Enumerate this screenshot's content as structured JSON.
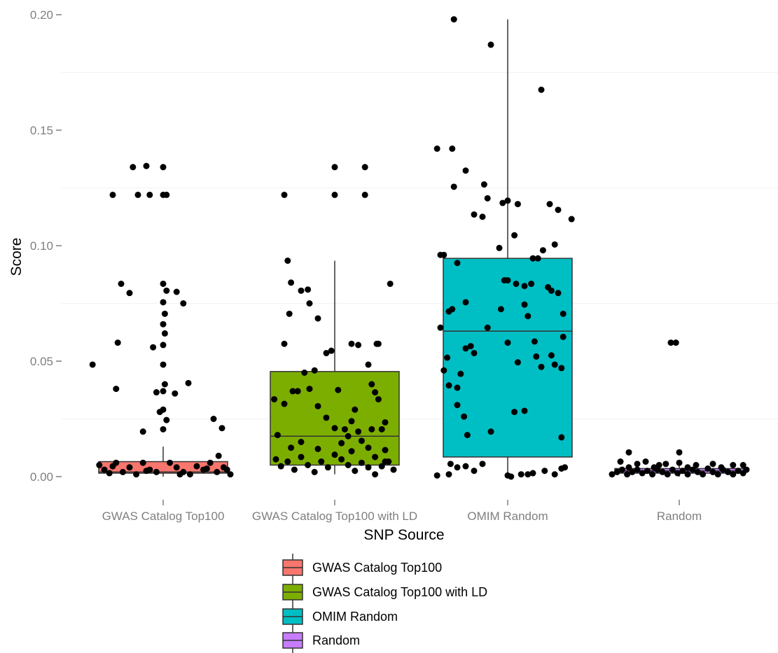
{
  "chart_data": {
    "type": "box",
    "xlabel": "SNP Source",
    "ylabel": "Score",
    "ylim": [
      -0.007,
      0.202
    ],
    "yticks": [
      0.0,
      0.05,
      0.1,
      0.15,
      0.2
    ],
    "ytick_labels": [
      "0.00",
      "0.05",
      "0.10",
      "0.15",
      "0.20"
    ],
    "grid": true,
    "legend_position": "bottom",
    "categories": [
      "GWAS Catalog Top100",
      "GWAS Catalog Top100 with LD",
      "OMIM Random",
      "Random"
    ],
    "series": [
      {
        "name": "GWAS Catalog Top100",
        "color": "#f8766d",
        "box": {
          "q1": 0.0015,
          "median": 0.002,
          "q3": 0.0065,
          "whisker_low": 0.0,
          "whisker_high": 0.013
        },
        "points": [
          [
            -0.42,
            0.0485
          ],
          [
            -0.3,
            0.122
          ],
          [
            -0.28,
            0.038
          ],
          [
            -0.27,
            0.058
          ],
          [
            -0.25,
            0.0835
          ],
          [
            -0.2,
            0.0795
          ],
          [
            -0.18,
            0.134
          ],
          [
            -0.15,
            0.122
          ],
          [
            -0.12,
            0.0195
          ],
          [
            -0.1,
            0.1345
          ],
          [
            -0.08,
            0.122
          ],
          [
            -0.06,
            0.056
          ],
          [
            -0.04,
            0.0365
          ],
          [
            -0.02,
            0.028
          ],
          [
            0.0,
            0.134
          ],
          [
            0.0,
            0.122
          ],
          [
            0.02,
            0.122
          ],
          [
            0.0,
            0.0835
          ],
          [
            0.02,
            0.0805
          ],
          [
            0.0,
            0.0755
          ],
          [
            0.01,
            0.0705
          ],
          [
            0.0,
            0.066
          ],
          [
            0.01,
            0.062
          ],
          [
            0.0,
            0.057
          ],
          [
            0.0,
            0.0485
          ],
          [
            0.01,
            0.04
          ],
          [
            0.0,
            0.037
          ],
          [
            0.0,
            0.029
          ],
          [
            0.02,
            0.0245
          ],
          [
            0.0,
            0.0205
          ],
          [
            0.08,
            0.08
          ],
          [
            0.12,
            0.075
          ],
          [
            0.15,
            0.0405
          ],
          [
            0.07,
            0.036
          ],
          [
            0.3,
            0.025
          ],
          [
            0.35,
            0.021
          ],
          [
            0.33,
            0.009
          ],
          [
            -0.38,
            0.005
          ],
          [
            -0.35,
            0.003
          ],
          [
            -0.32,
            0.0015
          ],
          [
            -0.28,
            0.006
          ],
          [
            -0.24,
            0.002
          ],
          [
            -0.2,
            0.004
          ],
          [
            -0.16,
            0.001
          ],
          [
            -0.12,
            0.006
          ],
          [
            -0.08,
            0.003
          ],
          [
            -0.04,
            0.002
          ],
          [
            0.04,
            0.006
          ],
          [
            0.08,
            0.004
          ],
          [
            0.12,
            0.002
          ],
          [
            0.16,
            0.001
          ],
          [
            0.2,
            0.0045
          ],
          [
            0.24,
            0.003
          ],
          [
            0.28,
            0.006
          ],
          [
            0.32,
            0.002
          ],
          [
            0.36,
            0.004
          ],
          [
            0.4,
            0.001
          ],
          [
            -0.3,
            0.0045
          ],
          [
            0.1,
            0.001
          ],
          [
            0.26,
            0.0035
          ],
          [
            0.38,
            0.003
          ],
          [
            -0.1,
            0.0025
          ]
        ]
      },
      {
        "name": "GWAS Catalog Top100 with LD",
        "color": "#7cae00",
        "box": {
          "q1": 0.005,
          "median": 0.0175,
          "q3": 0.0455,
          "whisker_low": 0.001,
          "whisker_high": 0.0935
        },
        "points": [
          [
            -0.3,
            0.122
          ],
          [
            -0.28,
            0.0935
          ],
          [
            -0.26,
            0.084
          ],
          [
            -0.2,
            0.0805
          ],
          [
            -0.16,
            0.081
          ],
          [
            -0.15,
            0.075
          ],
          [
            -0.1,
            0.0685
          ],
          [
            -0.27,
            0.0705
          ],
          [
            -0.3,
            0.0575
          ],
          [
            -0.18,
            0.045
          ],
          [
            -0.12,
            0.046
          ],
          [
            -0.05,
            0.0535
          ],
          [
            -0.02,
            0.0545
          ],
          [
            0.0,
            0.134
          ],
          [
            0.0,
            0.122
          ],
          [
            0.18,
            0.134
          ],
          [
            0.18,
            0.122
          ],
          [
            0.1,
            0.0575
          ],
          [
            0.14,
            0.057
          ],
          [
            0.25,
            0.0575
          ],
          [
            0.26,
            0.0575
          ],
          [
            0.2,
            0.0485
          ],
          [
            0.22,
            0.04
          ],
          [
            0.24,
            0.0365
          ],
          [
            0.26,
            0.0335
          ],
          [
            0.33,
            0.0835
          ],
          [
            0.3,
            0.0235
          ],
          [
            0.28,
            0.0205
          ],
          [
            -0.36,
            0.0335
          ],
          [
            -0.3,
            0.0315
          ],
          [
            -0.25,
            0.037
          ],
          [
            -0.22,
            0.037
          ],
          [
            -0.15,
            0.038
          ],
          [
            -0.1,
            0.0305
          ],
          [
            -0.05,
            0.0255
          ],
          [
            0.0,
            0.021
          ],
          [
            0.02,
            0.0375
          ],
          [
            0.06,
            0.0205
          ],
          [
            0.08,
            0.0175
          ],
          [
            0.1,
            0.024
          ],
          [
            0.12,
            0.029
          ],
          [
            0.14,
            0.0195
          ],
          [
            0.16,
            0.0155
          ],
          [
            0.2,
            0.0125
          ],
          [
            0.24,
            0.0085
          ],
          [
            0.28,
            0.0045
          ],
          [
            0.32,
            0.0065
          ],
          [
            0.35,
            0.003
          ],
          [
            -0.35,
            0.0075
          ],
          [
            -0.32,
            0.0045
          ],
          [
            -0.28,
            0.0065
          ],
          [
            -0.24,
            0.003
          ],
          [
            -0.2,
            0.0085
          ],
          [
            -0.16,
            0.005
          ],
          [
            -0.12,
            0.002
          ],
          [
            -0.08,
            0.0065
          ],
          [
            -0.04,
            0.004
          ],
          [
            0.04,
            0.0075
          ],
          [
            0.08,
            0.005
          ],
          [
            0.12,
            0.0025
          ],
          [
            0.16,
            0.006
          ],
          [
            0.2,
            0.004
          ],
          [
            0.24,
            0.001
          ],
          [
            0.3,
            0.0065
          ],
          [
            -0.34,
            0.018
          ],
          [
            -0.26,
            0.0125
          ],
          [
            -0.2,
            0.015
          ],
          [
            -0.1,
            0.012
          ],
          [
            0.0,
            0.0095
          ],
          [
            0.04,
            0.0145
          ],
          [
            0.1,
            0.011
          ],
          [
            0.22,
            0.0205
          ],
          [
            0.3,
            0.0115
          ]
        ]
      },
      {
        "name": "OMIM Random",
        "color": "#00bfc4",
        "box": {
          "q1": 0.0085,
          "median": 0.063,
          "q3": 0.0945,
          "whisker_low": 0.0,
          "whisker_high": 0.198
        },
        "points": [
          [
            -0.42,
            0.142
          ],
          [
            -0.33,
            0.142
          ],
          [
            -0.32,
            0.1255
          ],
          [
            -0.25,
            0.1325
          ],
          [
            -0.2,
            0.1135
          ],
          [
            -0.15,
            0.1125
          ],
          [
            -0.14,
            0.1265
          ],
          [
            -0.12,
            0.1205
          ],
          [
            -0.03,
            0.1185
          ],
          [
            0.06,
            0.118
          ],
          [
            0.25,
            0.118
          ],
          [
            0.3,
            0.1155
          ],
          [
            0.38,
            0.1115
          ],
          [
            0.28,
            0.1005
          ],
          [
            -0.32,
            0.198
          ],
          [
            -0.1,
            0.187
          ],
          [
            0.2,
            0.1675
          ],
          [
            0.0,
            0.1195
          ],
          [
            -0.05,
            0.099
          ],
          [
            0.04,
            0.1045
          ],
          [
            -0.38,
            0.096
          ],
          [
            -0.3,
            0.0925
          ],
          [
            -0.4,
            0.096
          ],
          [
            -0.25,
            0.0755
          ],
          [
            -0.12,
            0.0645
          ],
          [
            -0.04,
            0.0725
          ],
          [
            -0.02,
            0.085
          ],
          [
            0.0,
            0.085
          ],
          [
            0.05,
            0.0835
          ],
          [
            0.1,
            0.0825
          ],
          [
            0.15,
            0.0945
          ],
          [
            0.18,
            0.0945
          ],
          [
            0.21,
            0.098
          ],
          [
            0.24,
            0.082
          ],
          [
            0.26,
            0.0805
          ],
          [
            0.3,
            0.0795
          ],
          [
            0.33,
            0.0705
          ],
          [
            0.33,
            0.0605
          ],
          [
            0.32,
            0.047
          ],
          [
            0.32,
            0.017
          ],
          [
            0.1,
            0.0745
          ],
          [
            0.12,
            0.0695
          ],
          [
            0.14,
            0.0835
          ],
          [
            0.16,
            0.0585
          ],
          [
            0.17,
            0.052
          ],
          [
            0.06,
            0.0495
          ],
          [
            -0.35,
            0.0715
          ],
          [
            -0.33,
            0.0725
          ],
          [
            -0.36,
            0.0515
          ],
          [
            -0.38,
            0.046
          ],
          [
            -0.35,
            0.0395
          ],
          [
            -0.3,
            0.0385
          ],
          [
            -0.3,
            0.031
          ],
          [
            -0.25,
            0.0555
          ],
          [
            -0.4,
            0.0645
          ],
          [
            -0.22,
            0.0565
          ],
          [
            -0.2,
            0.0535
          ],
          [
            0.0,
            0.058
          ],
          [
            0.04,
            0.028
          ],
          [
            0.1,
            0.0285
          ],
          [
            -0.1,
            0.0195
          ],
          [
            -0.26,
            0.026
          ],
          [
            -0.24,
            0.018
          ],
          [
            -0.28,
            0.0445
          ],
          [
            0.28,
            0.0485
          ],
          [
            0.2,
            0.0475
          ],
          [
            0.26,
            0.0525
          ],
          [
            -0.42,
            0.0005
          ],
          [
            -0.35,
            0.001
          ],
          [
            -0.3,
            0.004
          ],
          [
            -0.25,
            0.0045
          ],
          [
            -0.2,
            0.0025
          ],
          [
            -0.15,
            0.0055
          ],
          [
            0.0,
            0.0005
          ],
          [
            0.02,
            0.0
          ],
          [
            0.08,
            0.001
          ],
          [
            0.12,
            0.001
          ],
          [
            0.15,
            0.0015
          ],
          [
            0.22,
            0.0025
          ],
          [
            0.28,
            0.001
          ],
          [
            0.34,
            0.004
          ],
          [
            -0.34,
            0.0055
          ],
          [
            0.32,
            0.0035
          ]
        ]
      },
      {
        "name": "Random",
        "color": "#c77cff",
        "box": {
          "q1": 0.0015,
          "median": 0.0025,
          "q3": 0.0035,
          "whisker_low": 0.0,
          "whisker_high": 0.0055
        },
        "points": [
          [
            -0.05,
            0.058
          ],
          [
            -0.02,
            0.058
          ],
          [
            -0.3,
            0.0105
          ],
          [
            0.0,
            0.0105
          ],
          [
            -0.35,
            0.0065
          ],
          [
            -0.25,
            0.0055
          ],
          [
            -0.2,
            0.0065
          ],
          [
            -0.12,
            0.005
          ],
          [
            -0.08,
            0.0055
          ],
          [
            0.0,
            0.006
          ],
          [
            0.1,
            0.005
          ],
          [
            0.2,
            0.0055
          ],
          [
            0.32,
            0.005
          ],
          [
            0.38,
            0.005
          ],
          [
            -0.4,
            0.001
          ],
          [
            -0.37,
            0.002
          ],
          [
            -0.34,
            0.003
          ],
          [
            -0.31,
            0.001
          ],
          [
            -0.28,
            0.002
          ],
          [
            -0.25,
            0.003
          ],
          [
            -0.22,
            0.0015
          ],
          [
            -0.19,
            0.0025
          ],
          [
            -0.16,
            0.001
          ],
          [
            -0.13,
            0.003
          ],
          [
            -0.1,
            0.002
          ],
          [
            -0.07,
            0.001
          ],
          [
            -0.04,
            0.003
          ],
          [
            -0.01,
            0.0015
          ],
          [
            0.02,
            0.0025
          ],
          [
            0.05,
            0.001
          ],
          [
            0.08,
            0.003
          ],
          [
            0.11,
            0.002
          ],
          [
            0.14,
            0.001
          ],
          [
            0.17,
            0.0035
          ],
          [
            0.2,
            0.002
          ],
          [
            0.23,
            0.001
          ],
          [
            0.26,
            0.003
          ],
          [
            0.29,
            0.002
          ],
          [
            0.32,
            0.001
          ],
          [
            0.35,
            0.0025
          ],
          [
            0.38,
            0.0015
          ],
          [
            0.4,
            0.003
          ],
          [
            -0.3,
            0.004
          ],
          [
            -0.15,
            0.004
          ],
          [
            0.05,
            0.004
          ],
          [
            0.25,
            0.004
          ]
        ]
      }
    ]
  }
}
